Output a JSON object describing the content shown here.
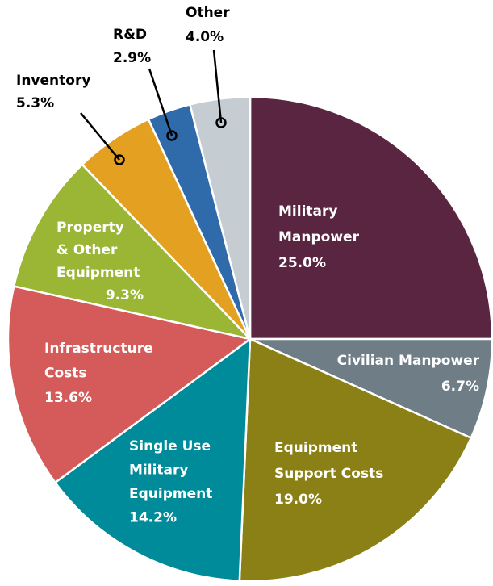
{
  "chart_data": {
    "type": "pie",
    "categories": [
      [
        "Military",
        "Manpower"
      ],
      [
        "Civilian Manpower"
      ],
      [
        "Equipment",
        "Support Costs"
      ],
      [
        "Single Use",
        "Military",
        "Equipment"
      ],
      [
        "Infrastructure",
        "Costs"
      ],
      [
        "Property",
        "& Other",
        "Equipment"
      ],
      [
        "Inventory"
      ],
      [
        "R&D"
      ],
      [
        "Other"
      ]
    ],
    "values": [
      25.0,
      6.7,
      19.0,
      14.2,
      13.6,
      9.3,
      5.3,
      2.9,
      4.0
    ],
    "value_labels": [
      "25.0%",
      "6.7%",
      "19.0%",
      "14.2%",
      "13.6%",
      "9.3%",
      "5.3%",
      "2.9%",
      "4.0%"
    ],
    "colors": [
      "#5a2540",
      "#6f7d86",
      "#8a8016",
      "#008b9a",
      "#d45b5a",
      "#9ab634",
      "#e3a021",
      "#2f6aaa",
      "#c5cdd3"
    ]
  }
}
